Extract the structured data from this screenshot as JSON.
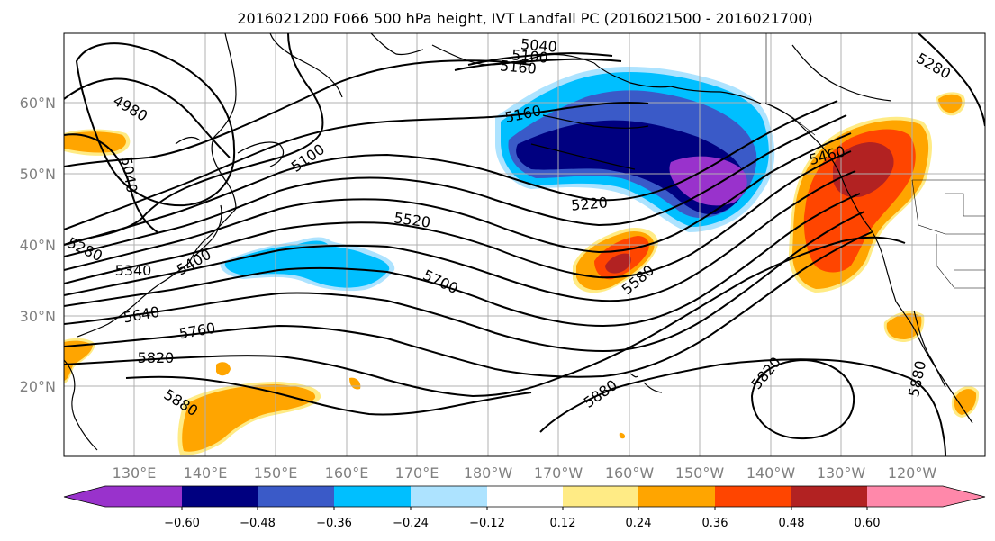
{
  "title": "2016021200 F066 500 hPa height, IVT Landfall PC (2016021500 - 2016021700)",
  "lat_labels": [
    "60°N",
    "50°N",
    "40°N",
    "30°N",
    "20°N"
  ],
  "lon_labels": [
    "130°E",
    "140°E",
    "150°E",
    "160°E",
    "170°E",
    "180°W",
    "170°W",
    "160°W",
    "150°W",
    "140°W",
    "130°W",
    "120°W"
  ],
  "contour_labels": [
    "5040",
    "5100",
    "5160",
    "4980",
    "5040",
    "5100",
    "5160",
    "5220",
    "5280",
    "5340",
    "5400",
    "5460",
    "5520",
    "5580",
    "5640",
    "5700",
    "5760",
    "5820",
    "5880",
    "5880",
    "5820",
    "5880",
    "5280"
  ],
  "colorbar": {
    "ticks": [
      "−0.60",
      "−0.48",
      "−0.36",
      "−0.24",
      "−0.12",
      "0.12",
      "0.24",
      "0.36",
      "0.48",
      "0.60"
    ],
    "colors": [
      "#9932CC",
      "#000080",
      "#3A5AC8",
      "#00BFFF",
      "#ADE3FF",
      "#FFFFFF",
      "#FFEB85",
      "#FFA500",
      "#FF4500",
      "#B22222",
      "#FF88AA"
    ]
  },
  "map_colors": {
    "purple": "#9932CC",
    "navy": "#000080",
    "blue": "#3A5AC8",
    "cyan": "#00BFFF",
    "lightblue": "#ADE3FF",
    "yellow": "#FFEB85",
    "orange": "#FFA500",
    "redorange": "#FF4500",
    "darkred": "#B22222"
  }
}
